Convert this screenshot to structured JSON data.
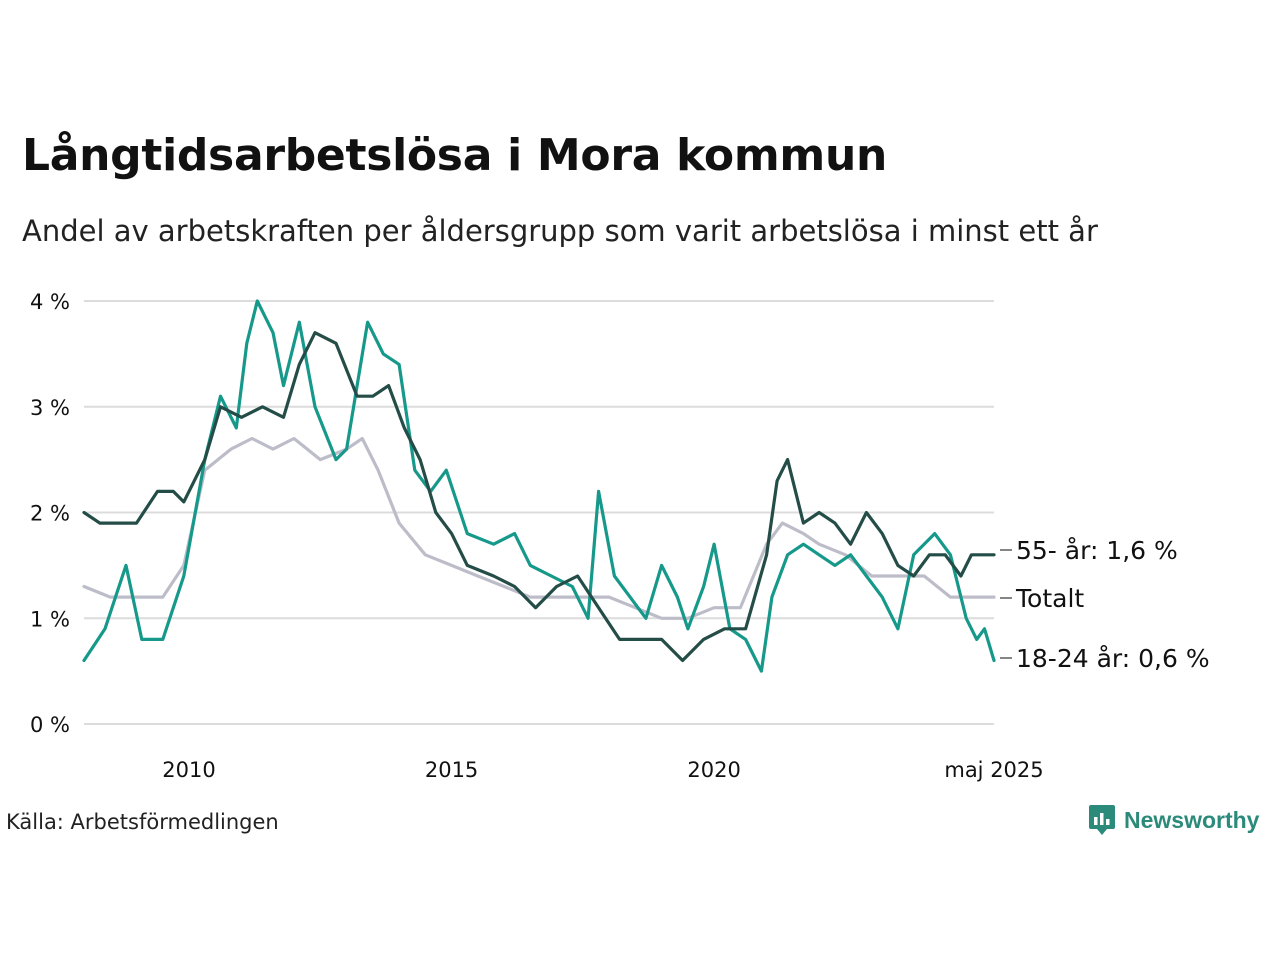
{
  "title": "Långtidsarbetslösa i Mora kommun",
  "subtitle": "Andel av arbetskraften per åldersgrupp som varit arbetslösa i minst ett år",
  "source": "Källa: Arbetsförmedlingen",
  "logo_text": "Newsworthy",
  "colors": {
    "grid": "#dcdcdc",
    "senior": "#244d48",
    "total": "#bdbdca",
    "youth": "#16998a",
    "brand": "#2b8a7a"
  },
  "chart_data": {
    "type": "line",
    "title": "Långtidsarbetslösa i Mora kommun",
    "xlabel": "",
    "ylabel": "",
    "xlim": [
      2008.0,
      2025.33
    ],
    "ylim": [
      0,
      4
    ],
    "y_ticks": [
      0,
      1,
      2,
      3,
      4
    ],
    "y_tick_labels": [
      "0 %",
      "1 %",
      "2 %",
      "3 %",
      "4 %"
    ],
    "x_ticks": [
      2010,
      2015,
      2020,
      2025.33
    ],
    "x_tick_labels": [
      "2010",
      "2015",
      "2020",
      "maj 2025"
    ],
    "grid": true,
    "legend": "direct labels at line ends (right)",
    "series": [
      {
        "key": "total",
        "name": "Totalt",
        "end_label": "Totalt",
        "points": [
          [
            2008.0,
            1.3
          ],
          [
            2008.5,
            1.2
          ],
          [
            2009.0,
            1.2
          ],
          [
            2009.5,
            1.2
          ],
          [
            2009.9,
            1.5
          ],
          [
            2010.3,
            2.4
          ],
          [
            2010.8,
            2.6
          ],
          [
            2011.2,
            2.7
          ],
          [
            2011.6,
            2.6
          ],
          [
            2012.0,
            2.7
          ],
          [
            2012.5,
            2.5
          ],
          [
            2013.0,
            2.6
          ],
          [
            2013.3,
            2.7
          ],
          [
            2013.6,
            2.4
          ],
          [
            2014.0,
            1.9
          ],
          [
            2014.5,
            1.6
          ],
          [
            2015.0,
            1.5
          ],
          [
            2015.5,
            1.4
          ],
          [
            2016.0,
            1.3
          ],
          [
            2016.5,
            1.2
          ],
          [
            2017.0,
            1.2
          ],
          [
            2017.5,
            1.2
          ],
          [
            2018.0,
            1.2
          ],
          [
            2018.5,
            1.1
          ],
          [
            2019.0,
            1.0
          ],
          [
            2019.5,
            1.0
          ],
          [
            2020.0,
            1.1
          ],
          [
            2020.5,
            1.1
          ],
          [
            2021.0,
            1.7
          ],
          [
            2021.3,
            1.9
          ],
          [
            2021.7,
            1.8
          ],
          [
            2022.0,
            1.7
          ],
          [
            2022.5,
            1.6
          ],
          [
            2023.0,
            1.4
          ],
          [
            2023.5,
            1.4
          ],
          [
            2024.0,
            1.4
          ],
          [
            2024.5,
            1.2
          ],
          [
            2025.0,
            1.2
          ],
          [
            2025.33,
            1.2
          ]
        ]
      },
      {
        "key": "youth",
        "name": "18-24 år",
        "end_label": "18-24 år: 0,6 %",
        "points": [
          [
            2008.0,
            0.6
          ],
          [
            2008.4,
            0.9
          ],
          [
            2008.8,
            1.5
          ],
          [
            2009.1,
            0.8
          ],
          [
            2009.5,
            0.8
          ],
          [
            2009.9,
            1.4
          ],
          [
            2010.3,
            2.5
          ],
          [
            2010.6,
            3.1
          ],
          [
            2010.9,
            2.8
          ],
          [
            2011.1,
            3.6
          ],
          [
            2011.3,
            4.0
          ],
          [
            2011.6,
            3.7
          ],
          [
            2011.8,
            3.2
          ],
          [
            2012.1,
            3.8
          ],
          [
            2012.4,
            3.0
          ],
          [
            2012.8,
            2.5
          ],
          [
            2013.0,
            2.6
          ],
          [
            2013.4,
            3.8
          ],
          [
            2013.7,
            3.5
          ],
          [
            2014.0,
            3.4
          ],
          [
            2014.3,
            2.4
          ],
          [
            2014.6,
            2.2
          ],
          [
            2014.9,
            2.4
          ],
          [
            2015.3,
            1.8
          ],
          [
            2015.8,
            1.7
          ],
          [
            2016.2,
            1.8
          ],
          [
            2016.5,
            1.5
          ],
          [
            2016.9,
            1.4
          ],
          [
            2017.3,
            1.3
          ],
          [
            2017.6,
            1.0
          ],
          [
            2017.8,
            2.2
          ],
          [
            2018.1,
            1.4
          ],
          [
            2018.4,
            1.2
          ],
          [
            2018.7,
            1.0
          ],
          [
            2019.0,
            1.5
          ],
          [
            2019.3,
            1.2
          ],
          [
            2019.5,
            0.9
          ],
          [
            2019.8,
            1.3
          ],
          [
            2020.0,
            1.7
          ],
          [
            2020.3,
            0.9
          ],
          [
            2020.6,
            0.8
          ],
          [
            2020.9,
            0.5
          ],
          [
            2021.1,
            1.2
          ],
          [
            2021.4,
            1.6
          ],
          [
            2021.7,
            1.7
          ],
          [
            2022.0,
            1.6
          ],
          [
            2022.3,
            1.5
          ],
          [
            2022.6,
            1.6
          ],
          [
            2022.9,
            1.4
          ],
          [
            2023.2,
            1.2
          ],
          [
            2023.5,
            0.9
          ],
          [
            2023.8,
            1.6
          ],
          [
            2024.2,
            1.8
          ],
          [
            2024.5,
            1.6
          ],
          [
            2024.8,
            1.0
          ],
          [
            2025.0,
            0.8
          ],
          [
            2025.15,
            0.9
          ],
          [
            2025.33,
            0.6
          ]
        ]
      },
      {
        "key": "senior",
        "name": "55- år",
        "end_label": "55- år: 1,6 %",
        "points": [
          [
            2008.0,
            2.0
          ],
          [
            2008.3,
            1.9
          ],
          [
            2008.6,
            1.9
          ],
          [
            2009.0,
            1.9
          ],
          [
            2009.4,
            2.2
          ],
          [
            2009.7,
            2.2
          ],
          [
            2009.9,
            2.1
          ],
          [
            2010.3,
            2.5
          ],
          [
            2010.6,
            3.0
          ],
          [
            2011.0,
            2.9
          ],
          [
            2011.4,
            3.0
          ],
          [
            2011.8,
            2.9
          ],
          [
            2012.1,
            3.4
          ],
          [
            2012.4,
            3.7
          ],
          [
            2012.8,
            3.6
          ],
          [
            2013.2,
            3.1
          ],
          [
            2013.5,
            3.1
          ],
          [
            2013.8,
            3.2
          ],
          [
            2014.1,
            2.8
          ],
          [
            2014.4,
            2.5
          ],
          [
            2014.7,
            2.0
          ],
          [
            2015.0,
            1.8
          ],
          [
            2015.3,
            1.5
          ],
          [
            2015.8,
            1.4
          ],
          [
            2016.2,
            1.3
          ],
          [
            2016.6,
            1.1
          ],
          [
            2017.0,
            1.3
          ],
          [
            2017.4,
            1.4
          ],
          [
            2017.8,
            1.1
          ],
          [
            2018.2,
            0.8
          ],
          [
            2018.6,
            0.8
          ],
          [
            2019.0,
            0.8
          ],
          [
            2019.4,
            0.6
          ],
          [
            2019.8,
            0.8
          ],
          [
            2020.2,
            0.9
          ],
          [
            2020.6,
            0.9
          ],
          [
            2021.0,
            1.6
          ],
          [
            2021.2,
            2.3
          ],
          [
            2021.4,
            2.5
          ],
          [
            2021.7,
            1.9
          ],
          [
            2022.0,
            2.0
          ],
          [
            2022.3,
            1.9
          ],
          [
            2022.6,
            1.7
          ],
          [
            2022.9,
            2.0
          ],
          [
            2023.2,
            1.8
          ],
          [
            2023.5,
            1.5
          ],
          [
            2023.8,
            1.4
          ],
          [
            2024.1,
            1.6
          ],
          [
            2024.4,
            1.6
          ],
          [
            2024.7,
            1.4
          ],
          [
            2024.9,
            1.6
          ],
          [
            2025.1,
            1.6
          ],
          [
            2025.33,
            1.6
          ]
        ]
      }
    ]
  }
}
